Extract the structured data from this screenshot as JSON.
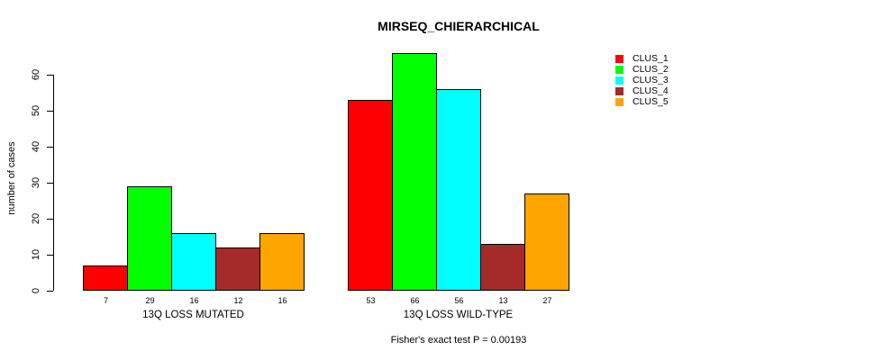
{
  "chart_data": {
    "type": "bar",
    "title": "MIRSEQ_CHIERARCHICAL",
    "ylabel": "number of cases",
    "xlabel": "",
    "categories": [
      "13Q LOSS MUTATED",
      "13Q LOSS WILD-TYPE"
    ],
    "series": [
      {
        "name": "CLUS_1",
        "color": "#FF0000",
        "values": [
          7,
          53
        ]
      },
      {
        "name": "CLUS_2",
        "color": "#00FF00",
        "values": [
          29,
          66
        ]
      },
      {
        "name": "CLUS_3",
        "color": "#00FFFF",
        "values": [
          16,
          56
        ]
      },
      {
        "name": "CLUS_4",
        "color": "#A52A2A",
        "values": [
          12,
          13
        ]
      },
      {
        "name": "CLUS_5",
        "color": "#FFA500",
        "values": [
          16,
          27
        ]
      }
    ],
    "yticks": [
      0,
      10,
      20,
      30,
      40,
      50,
      60
    ],
    "ylim": [
      0,
      66
    ],
    "grid": false,
    "bar_value_labels": true,
    "legend_position": "top-right",
    "annotation": "Fisher's exact test P = 0.00193"
  }
}
